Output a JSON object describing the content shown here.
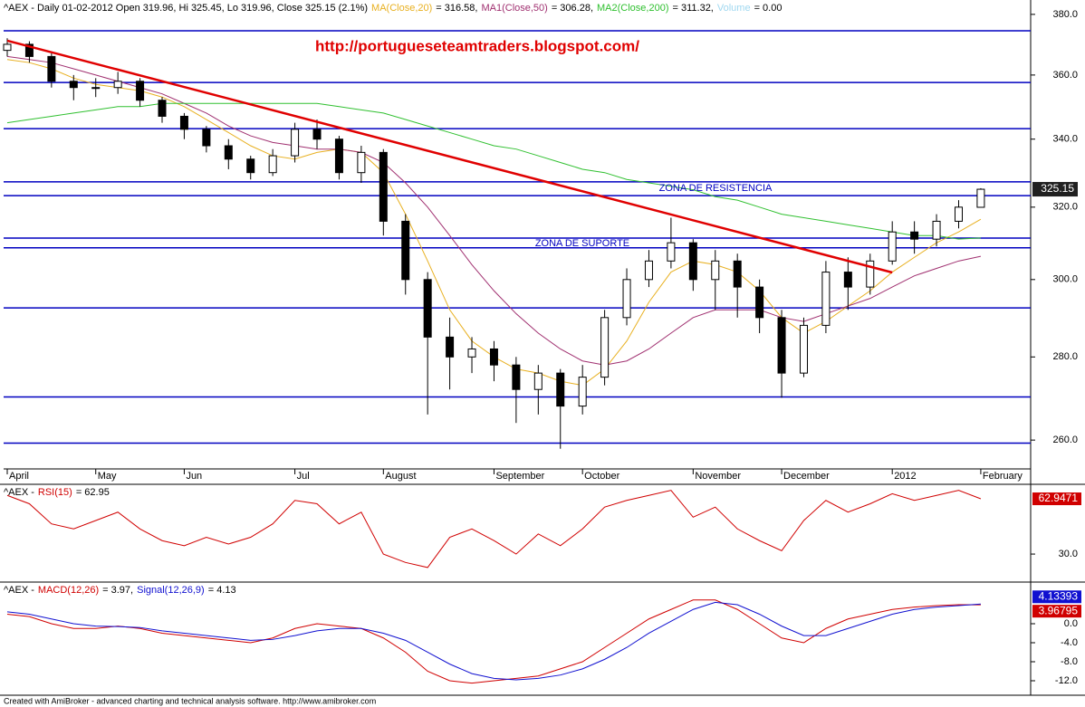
{
  "chart_data": [
    {
      "type": "candlestick",
      "title": "^AEX - Daily 01-02-2012 Open 319.96, Hi 325.45, Lo 319.96, Close 325.15 (2.1%)",
      "annotation": "http://portugueseteamtraders.blogspot.com/",
      "zone_labels": [
        "ZONA DE RESISTENCIA",
        "ZONA DE SUPORTE"
      ],
      "log_scale": true,
      "categories": [
        "April",
        null,
        null,
        null,
        "May",
        null,
        null,
        null,
        "Jun",
        null,
        null,
        null,
        null,
        "Jul",
        null,
        null,
        null,
        "August",
        null,
        null,
        null,
        null,
        "September",
        null,
        null,
        null,
        "October",
        null,
        null,
        null,
        null,
        "November",
        null,
        null,
        null,
        "December",
        null,
        null,
        null,
        null,
        "2012",
        null,
        null,
        null,
        "February"
      ],
      "open": [
        368,
        370,
        366,
        358,
        356,
        356,
        358,
        352,
        347,
        343,
        338,
        334,
        330,
        335,
        343,
        340,
        330,
        336,
        316,
        300,
        285,
        280,
        282,
        278,
        272,
        276,
        268,
        275,
        290,
        300,
        305,
        310,
        300,
        305,
        298,
        290,
        276,
        288,
        302,
        298,
        305,
        313,
        311,
        316,
        319.96
      ],
      "high": [
        372,
        371,
        367,
        360,
        359,
        361,
        359,
        353,
        348,
        344,
        340,
        335,
        337,
        345,
        346,
        341,
        338,
        337,
        318,
        302,
        290,
        285,
        284,
        280,
        278,
        277,
        278,
        292,
        303,
        308,
        317,
        311,
        308,
        307,
        300,
        292,
        290,
        305,
        306,
        307,
        316,
        316,
        318,
        322,
        325.45
      ],
      "low": [
        366,
        364,
        356,
        352,
        353,
        354,
        350,
        345,
        340,
        336,
        331,
        328,
        329,
        333,
        337,
        328,
        327,
        312,
        296,
        266,
        272,
        276,
        274,
        264,
        266,
        258,
        266,
        273,
        288,
        298,
        303,
        297,
        292,
        290,
        286,
        270,
        275,
        286,
        292,
        296,
        304,
        307,
        309,
        314,
        319.96
      ],
      "close": [
        370,
        366,
        358,
        356,
        356,
        358,
        352,
        347,
        343,
        338,
        334,
        330,
        335,
        343,
        340,
        330,
        336,
        316,
        300,
        285,
        280,
        282,
        278,
        272,
        276,
        268,
        275,
        290,
        300,
        305,
        310,
        300,
        305,
        298,
        290,
        276,
        288,
        302,
        298,
        305,
        313,
        311,
        316,
        320,
        325.15
      ],
      "series": [
        {
          "name": "MA(Close,20)",
          "legend_value": "= 316.58,",
          "color": "#e8b020",
          "values": [
            365,
            364,
            362,
            359,
            357,
            356,
            355,
            353,
            350,
            346,
            342,
            338,
            335,
            334,
            336,
            337,
            336,
            330,
            318,
            305,
            292,
            284,
            280,
            277,
            276,
            274,
            273,
            277,
            284,
            294,
            302,
            305,
            304,
            302,
            297,
            290,
            286,
            289,
            293,
            297,
            302,
            306,
            310,
            313,
            316.58
          ]
        },
        {
          "name": "MA1(Close,50)",
          "legend_value": "= 306.28,",
          "color": "#a03070",
          "values": [
            366,
            365,
            364,
            362,
            360,
            358,
            356,
            354,
            351,
            348,
            344,
            341,
            339,
            338,
            337,
            337,
            336,
            333,
            327,
            320,
            312,
            304,
            297,
            291,
            286,
            282,
            279,
            278,
            279,
            282,
            286,
            290,
            292,
            292,
            292,
            290,
            289,
            291,
            293,
            295,
            298,
            301,
            303,
            305,
            306.28
          ]
        },
        {
          "name": "MA2(Close,200)",
          "legend_value": "= 311.32,",
          "color": "#30c030",
          "values": [
            345,
            346,
            347,
            348,
            349,
            350,
            350,
            351,
            351,
            351,
            351,
            351,
            351,
            351,
            351,
            350,
            349,
            348,
            346,
            344,
            342,
            340,
            338,
            337,
            335,
            333,
            331,
            330,
            328,
            327,
            326,
            325,
            323,
            322,
            320,
            318,
            317,
            316,
            315,
            314,
            313,
            312,
            312,
            311,
            311.32
          ]
        }
      ],
      "volume": {
        "name": "Volume",
        "legend_value": "= 0.00",
        "color": "#a0d8f0"
      },
      "levels": [
        374.5,
        357.6,
        343.2,
        327.3,
        323.3,
        311.3,
        308.6,
        292.5,
        270.2,
        259.3
      ],
      "level_color": "#0000c0",
      "trendline": {
        "color": "#e00000",
        "values": [
          371.2,
          301.9
        ]
      },
      "ylim": [
        253.4,
        384.9
      ],
      "yticks": [
        {
          "value": 260,
          "label": "260.0"
        },
        {
          "value": 280,
          "label": "280.0"
        },
        {
          "value": 300,
          "label": "300.0"
        },
        {
          "value": 320,
          "label": "320.0"
        },
        {
          "value": 340,
          "label": "340.0"
        },
        {
          "value": 360,
          "label": "360.0"
        },
        {
          "value": 380,
          "label": "380.0"
        }
      ]
    },
    {
      "type": "line",
      "title": "^AEX -",
      "series": [
        {
          "name": "RSI(15)",
          "legend_value": "= 62.95",
          "color": "#d00000",
          "values": [
            65,
            60,
            48,
            45,
            50,
            55,
            45,
            38,
            35,
            40,
            36,
            40,
            48,
            62,
            60,
            48,
            55,
            30,
            25,
            22,
            40,
            45,
            38,
            30,
            42,
            35,
            45,
            58,
            62,
            65,
            68,
            52,
            58,
            45,
            38,
            32,
            50,
            62,
            55,
            60,
            66,
            62,
            65,
            68,
            62.9471
          ]
        }
      ],
      "ylim": [
        13.3,
        71.6
      ],
      "yticks": [
        {
          "value": 30,
          "label": "30.0"
        }
      ]
    },
    {
      "type": "line",
      "title": "^AEX -",
      "series": [
        {
          "name": "MACD(12,26)",
          "legend_value": "= 3.97,",
          "color": "#d00000",
          "values": [
            2,
            1.5,
            0,
            -1,
            -1,
            -0.5,
            -1,
            -2,
            -2.5,
            -3,
            -3.5,
            -4,
            -3,
            -1,
            0,
            -0.5,
            -1,
            -3,
            -6,
            -10,
            -12,
            -12.5,
            -12,
            -11.5,
            -11,
            -9.5,
            -8,
            -5,
            -2,
            1,
            3,
            5,
            5,
            3,
            0,
            -3,
            -4,
            -1,
            1,
            2,
            3,
            3.5,
            3.8,
            4,
            3.96795
          ]
        },
        {
          "name": "Signal(12,26,9)",
          "legend_value": "= 4.13",
          "color": "#1010d0",
          "values": [
            2.5,
            2,
            1,
            0,
            -0.5,
            -0.6,
            -0.8,
            -1.5,
            -2,
            -2.5,
            -3,
            -3.5,
            -3.3,
            -2.5,
            -1.5,
            -1,
            -1,
            -2,
            -3.5,
            -6,
            -8.5,
            -10.5,
            -11.5,
            -11.8,
            -11.5,
            -10.8,
            -9.5,
            -7.5,
            -5,
            -2,
            0.5,
            3,
            4.5,
            4,
            2,
            -0.5,
            -2.5,
            -2.5,
            -1,
            0.5,
            2,
            3,
            3.5,
            3.8,
            4.13393
          ]
        }
      ],
      "ylim": [
        -15.05,
        8.76
      ],
      "yticks": [
        {
          "value": 0,
          "label": "0.0"
        },
        {
          "value": -4,
          "label": "-4.0"
        },
        {
          "value": -8,
          "label": "-8.0"
        },
        {
          "value": -12,
          "label": "-12.0"
        }
      ]
    }
  ],
  "footer": "Created with AmiBroker - advanced charting and technical analysis software. http://www.amibroker.com"
}
